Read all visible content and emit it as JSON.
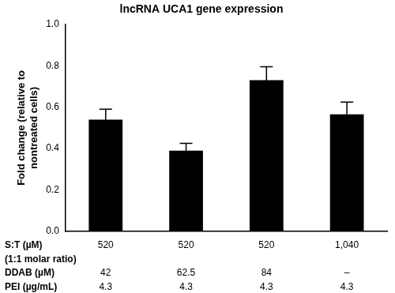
{
  "chart_data": {
    "type": "bar",
    "title": "lncRNA UCA1 gene expression",
    "y_label": [
      "Fold change (relative to",
      "nontreated cells)"
    ],
    "categories": [
      [
        "520",
        "42",
        "4.3"
      ],
      [
        "520",
        "62.5",
        "4.3"
      ],
      [
        "520",
        "84",
        "4.3"
      ],
      [
        "1,040",
        "–",
        "4.3"
      ]
    ],
    "category_rows": [
      [
        "S:T (µM)",
        "(1:1 molar ratio)"
      ],
      [
        "DDAB (µM)"
      ],
      [
        "PEI (µg/mL)"
      ]
    ],
    "values": [
      0.54,
      0.39,
      0.73,
      0.565
    ],
    "errors": [
      0.05,
      0.035,
      0.065,
      0.06
    ],
    "color": "#000000",
    "ylim": [
      0,
      1.0
    ],
    "yticks": [
      {
        "value": 0,
        "label": "0.0"
      },
      {
        "value": 0.2,
        "label": "0.2"
      },
      {
        "value": 0.4,
        "label": "0.4"
      },
      {
        "value": 0.6,
        "label": "0.6"
      },
      {
        "value": 0.8,
        "label": "0.8"
      },
      {
        "value": 1.0,
        "label": "1.0"
      }
    ],
    "grid": false
  }
}
